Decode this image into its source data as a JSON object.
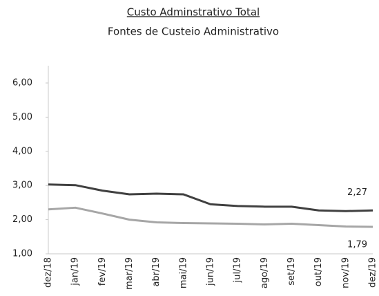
{
  "chart_data": {
    "type": "line",
    "title": "Custo Adminstrativo Total",
    "subtitle": "Fontes de Custeio Administrativo",
    "categories": [
      "dez/18",
      "jan/19",
      "fev/19",
      "mar/19",
      "abr/19",
      "mai/19",
      "jun/19",
      "jul/19",
      "ago/19",
      "set/19",
      "out/19",
      "nov/19",
      "dez/19"
    ],
    "series": [
      {
        "color": "#404040",
        "values": [
          3.03,
          3.01,
          2.85,
          2.74,
          2.76,
          2.74,
          2.45,
          2.4,
          2.38,
          2.38,
          2.27,
          2.25,
          2.27
        ],
        "value_labels": [
          null,
          null,
          null,
          null,
          null,
          null,
          null,
          null,
          null,
          null,
          null,
          null,
          "2,27"
        ]
      },
      {
        "color": "#a6a6a6",
        "values": [
          2.3,
          2.35,
          2.18,
          2.0,
          1.92,
          1.9,
          1.89,
          1.88,
          1.86,
          1.88,
          1.84,
          1.8,
          1.79
        ],
        "value_labels": [
          null,
          null,
          null,
          null,
          null,
          null,
          null,
          null,
          null,
          null,
          null,
          null,
          "1,79"
        ]
      }
    ],
    "ylim": [
      1,
      6
    ],
    "yticks": [
      {
        "value": 1,
        "label": "1,00"
      },
      {
        "value": 2,
        "label": "2,00"
      },
      {
        "value": 3,
        "label": "3,00"
      },
      {
        "value": 4,
        "label": "4,00"
      },
      {
        "value": 5,
        "label": "5,00"
      },
      {
        "value": 6,
        "label": "6,00"
      }
    ],
    "grid": false
  }
}
